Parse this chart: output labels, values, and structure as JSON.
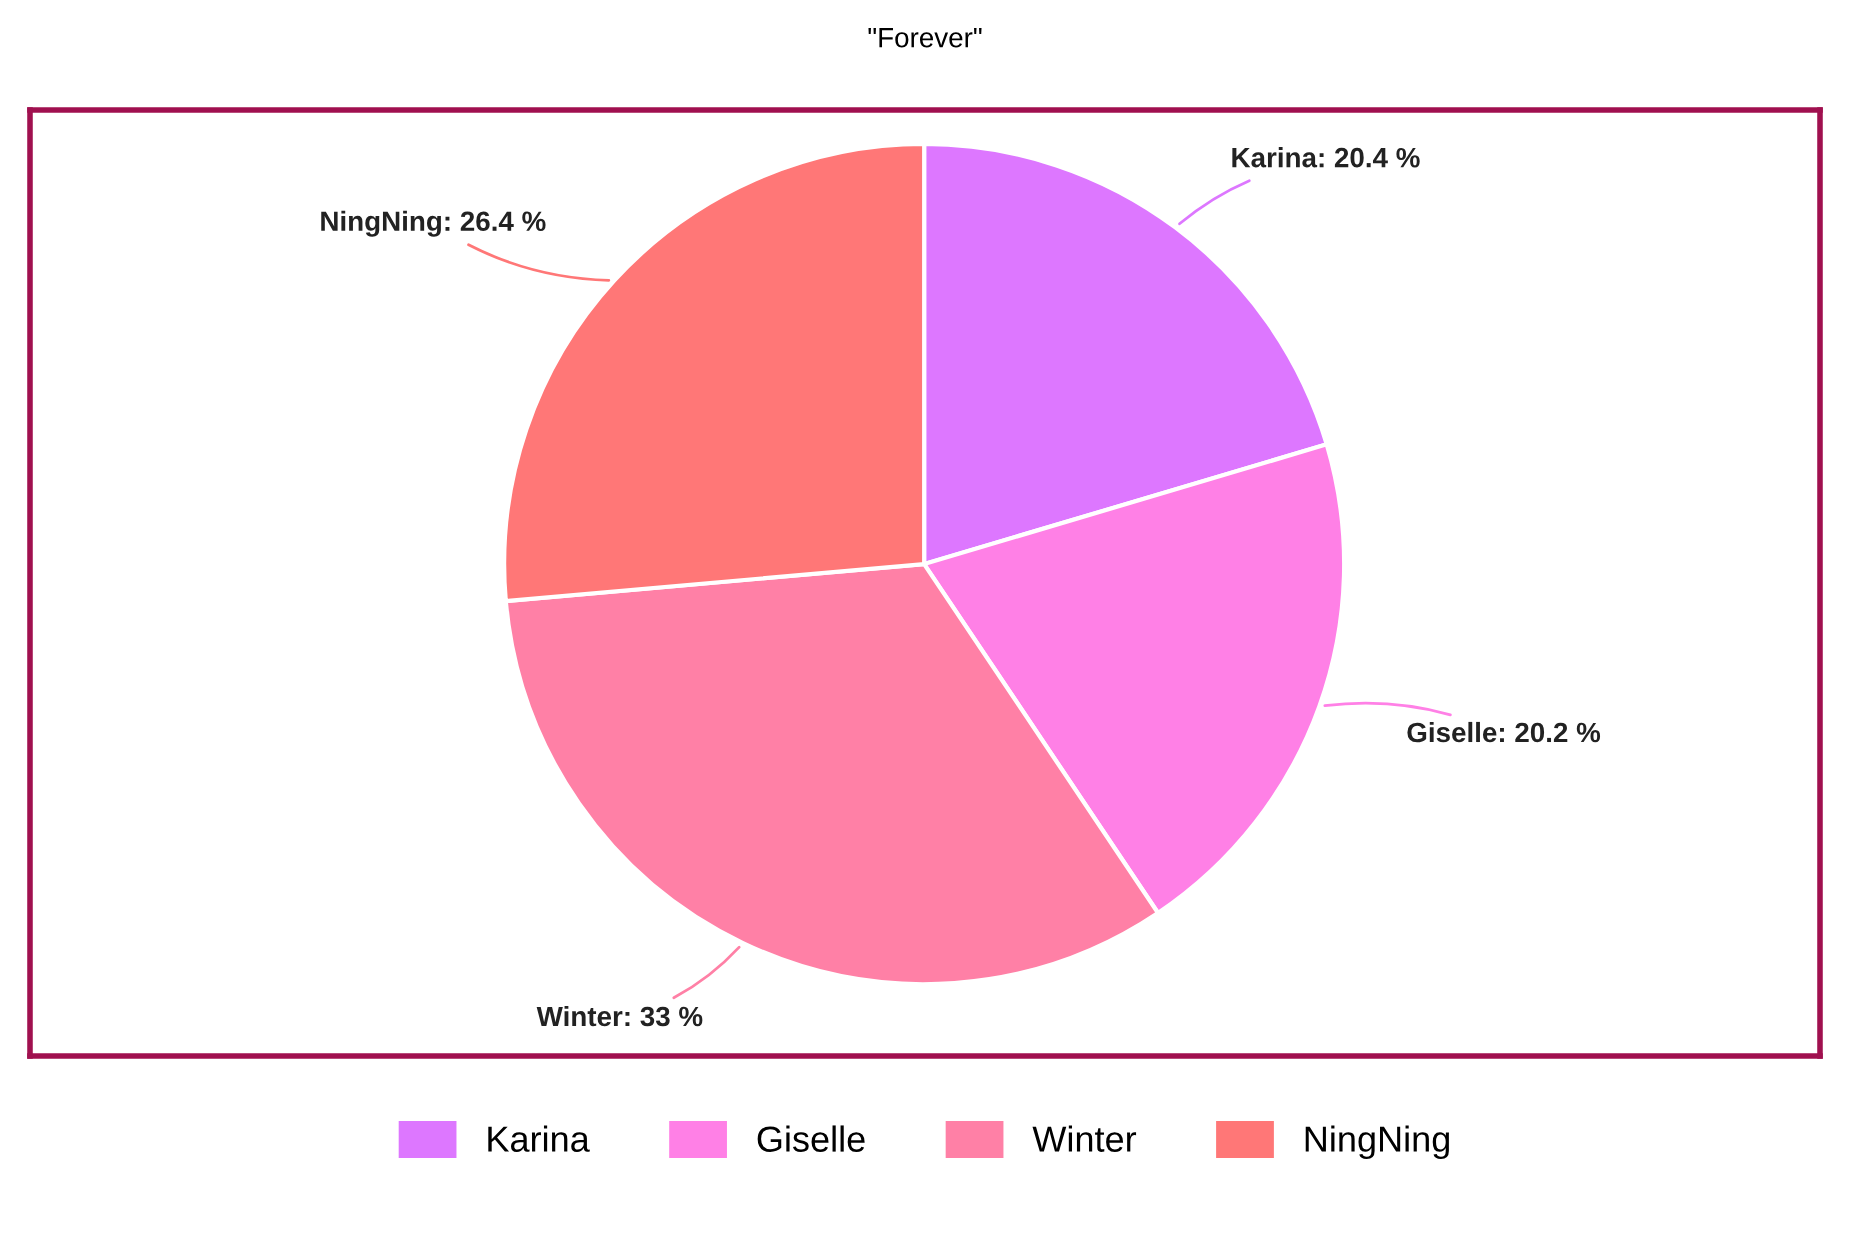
{
  "chart_data": {
    "type": "pie",
    "title": "\"Forever\"",
    "categories": [
      "Karina",
      "Giselle",
      "Winter",
      "NingNing"
    ],
    "values": [
      20.4,
      20.2,
      33,
      26.4
    ],
    "colors": [
      "#dd77ff",
      "#ff80e6",
      "#ff80a6",
      "#ff7777"
    ],
    "value_labels": [
      "Karina: 20.4 %",
      "Giselle: 20.2 %",
      "Winter: 33 %",
      "NingNing: 26.4 %"
    ],
    "legend": "bottom"
  }
}
